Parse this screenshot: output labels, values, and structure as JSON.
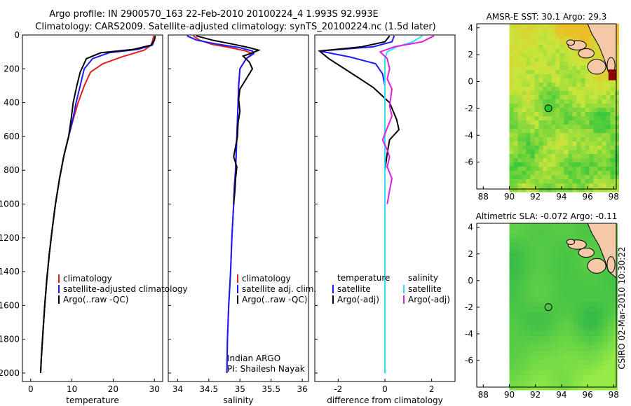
{
  "title_line1": "Argo profile: IN 2900570_163 22-Feb-2010 20100224_4 1.993S 92.993E",
  "title_line2": "Climatology: CARS2009. Satellite-adjusted climatology: synTS_20100224.nc (1.5d later)",
  "credit_text": "CSIRO 02-Mar-2010 10:30:22",
  "colors": {
    "climatology": "#e02020",
    "satellite_adj": "#1a1aff",
    "argo": "#000000",
    "sal_satellite": "#33ddff",
    "sal_argo": "#e020e0",
    "sea_green": "#22c233",
    "land": "#f5c8a8"
  },
  "chart_data": [
    {
      "type": "line",
      "name": "temperature-profile",
      "xlabel": "temperature",
      "ylabel": "",
      "xlim": [
        -2,
        32
      ],
      "ylim": [
        2050,
        0
      ],
      "xticks": [
        "0",
        "10",
        "20",
        "30"
      ],
      "xtick_values": [
        0,
        10,
        20,
        30
      ],
      "yticks": [
        "0",
        "200",
        "400",
        "600",
        "800",
        "1000",
        "1200",
        "1400",
        "1600",
        "1800",
        "2000"
      ],
      "ytick_values": [
        0,
        200,
        400,
        600,
        800,
        1000,
        1200,
        1400,
        1600,
        1800,
        2000
      ],
      "legend": [
        "climatology",
        "satellite-adjusted climatology",
        "Argo(..raw -QC)"
      ],
      "series": [
        {
          "name": "climatology",
          "color": "#e02020",
          "points": [
            [
              29.8,
              5
            ],
            [
              29.6,
              30
            ],
            [
              29.2,
              60
            ],
            [
              27.5,
              90
            ],
            [
              22,
              130
            ],
            [
              17.5,
              170
            ],
            [
              14.5,
              220
            ],
            [
              13,
              300
            ],
            [
              11.5,
              400
            ],
            [
              10.3,
              500
            ],
            [
              9.2,
              600
            ],
            [
              8,
              720
            ],
            [
              7,
              850
            ],
            [
              6,
              1000
            ],
            [
              5.2,
              1150
            ],
            [
              4.5,
              1300
            ],
            [
              3.9,
              1450
            ],
            [
              3.4,
              1600
            ],
            [
              3,
              1750
            ],
            [
              2.6,
              1900
            ],
            [
              2.4,
              2000
            ]
          ]
        },
        {
          "name": "satellite-adjusted climatology",
          "color": "#1a1aff",
          "points": [
            [
              30.2,
              5
            ],
            [
              30,
              30
            ],
            [
              29.5,
              60
            ],
            [
              26,
              85
            ],
            [
              19,
              105
            ],
            [
              15,
              140
            ],
            [
              13,
              200
            ],
            [
              12,
              300
            ],
            [
              11,
              400
            ],
            [
              10.2,
              500
            ],
            [
              9.2,
              600
            ],
            [
              8,
              720
            ],
            [
              7,
              850
            ],
            [
              6,
              1000
            ],
            [
              5.2,
              1150
            ],
            [
              4.5,
              1300
            ],
            [
              3.9,
              1450
            ],
            [
              3.4,
              1600
            ],
            [
              3,
              1750
            ],
            [
              2.6,
              1900
            ],
            [
              2.4,
              2000
            ]
          ]
        },
        {
          "name": "Argo(..raw -QC)",
          "color": "#000000",
          "points": [
            [
              30.2,
              5
            ],
            [
              30,
              30
            ],
            [
              29.2,
              60
            ],
            [
              25,
              85
            ],
            [
              17,
              105
            ],
            [
              13.5,
              140
            ],
            [
              12,
              220
            ],
            [
              11.2,
              300
            ],
            [
              10.3,
              400
            ],
            [
              9.8,
              500
            ],
            [
              9.2,
              600
            ],
            [
              8,
              720
            ],
            [
              7,
              850
            ],
            [
              6,
              1000
            ],
            [
              5.2,
              1150
            ],
            [
              4.5,
              1300
            ],
            [
              3.9,
              1450
            ],
            [
              3.4,
              1600
            ],
            [
              3,
              1750
            ],
            [
              2.6,
              1900
            ],
            [
              2.4,
              2000
            ]
          ]
        }
      ]
    },
    {
      "type": "line",
      "name": "salinity-profile",
      "xlabel": "salinity",
      "xlim": [
        33.85,
        36.1
      ],
      "ylim": [
        2050,
        0
      ],
      "xticks": [
        "34",
        "34.5",
        "35",
        "35.5",
        "36"
      ],
      "xtick_values": [
        34,
        34.5,
        35,
        35.5,
        36
      ],
      "legend": [
        "climatology",
        "satellite adj. clim.",
        "Argo(..raw -QC)"
      ],
      "annotations": [
        "Indian ARGO",
        "PI: Shailesh Nayak"
      ],
      "series": [
        {
          "name": "climatology",
          "color": "#e02020",
          "points": [
            [
              34.25,
              5
            ],
            [
              34.35,
              30
            ],
            [
              34.55,
              55
            ],
            [
              34.85,
              75
            ],
            [
              35.1,
              95
            ],
            [
              35.2,
              110
            ],
            [
              35.1,
              140
            ],
            [
              35.0,
              200
            ],
            [
              34.98,
              300
            ],
            [
              34.97,
              400
            ],
            [
              34.96,
              500
            ],
            [
              34.95,
              600
            ],
            [
              34.94,
              700
            ],
            [
              34.93,
              800
            ],
            [
              34.91,
              900
            ],
            [
              34.9,
              1000
            ],
            [
              34.87,
              1200
            ],
            [
              34.85,
              1400
            ],
            [
              34.82,
              1600
            ],
            [
              34.8,
              1800
            ],
            [
              34.79,
              2000
            ]
          ]
        },
        {
          "name": "satellite adj. clim.",
          "color": "#1a1aff",
          "points": [
            [
              34.15,
              5
            ],
            [
              34.3,
              30
            ],
            [
              34.65,
              55
            ],
            [
              35.0,
              75
            ],
            [
              35.2,
              95
            ],
            [
              35.22,
              110
            ],
            [
              35.1,
              140
            ],
            [
              35.0,
              200
            ],
            [
              34.98,
              300
            ],
            [
              34.97,
              400
            ],
            [
              34.96,
              500
            ],
            [
              34.95,
              600
            ],
            [
              34.94,
              700
            ],
            [
              34.93,
              800
            ],
            [
              34.91,
              900
            ],
            [
              34.9,
              1000
            ],
            [
              34.87,
              1200
            ],
            [
              34.85,
              1400
            ],
            [
              34.82,
              1600
            ],
            [
              34.8,
              1800
            ],
            [
              34.79,
              2000
            ]
          ]
        },
        {
          "name": "Argo(..raw -QC)",
          "color": "#000000",
          "points": [
            [
              34.3,
              5
            ],
            [
              34.55,
              30
            ],
            [
              34.9,
              55
            ],
            [
              35.15,
              75
            ],
            [
              35.3,
              90
            ],
            [
              35.2,
              105
            ],
            [
              35.05,
              125
            ],
            [
              35.15,
              160
            ],
            [
              35.2,
              200
            ],
            [
              35.1,
              260
            ],
            [
              35.0,
              320
            ],
            [
              34.98,
              380
            ],
            [
              35.0,
              450
            ],
            [
              34.97,
              520
            ],
            [
              34.96,
              600
            ],
            [
              34.92,
              680
            ],
            [
              34.9,
              720
            ],
            [
              34.95,
              780
            ],
            [
              34.93,
              850
            ],
            [
              34.92,
              920
            ],
            [
              34.9,
              1000
            ]
          ]
        }
      ]
    },
    {
      "type": "line",
      "name": "difference-profile",
      "xlabel": "difference from climatology",
      "xlim": [
        -3.0,
        3.0
      ],
      "ylim": [
        2050,
        0
      ],
      "xticks": [
        "-2",
        "0",
        "2"
      ],
      "xtick_values": [
        -2,
        0,
        2
      ],
      "legend": [
        "temperature",
        "satellite",
        "Argo(-adj)",
        "salinity",
        "satellite",
        "Argo(-adj)"
      ],
      "series": [
        {
          "name": "temperature satellite",
          "color": "#1a1aff",
          "points": [
            [
              0.4,
              5
            ],
            [
              0.3,
              40
            ],
            [
              -0.5,
              70
            ],
            [
              -2.8,
              95
            ],
            [
              -1.5,
              130
            ],
            [
              -0.4,
              170
            ],
            [
              -0.1,
              230
            ],
            [
              0,
              300
            ],
            [
              0,
              1000
            ],
            [
              0,
              1500
            ],
            [
              0,
              2000
            ]
          ]
        },
        {
          "name": "temperature Argo(-adj)",
          "color": "#000000",
          "points": [
            [
              0.2,
              5
            ],
            [
              0,
              40
            ],
            [
              -1,
              70
            ],
            [
              -2.8,
              95
            ],
            [
              -2.4,
              140
            ],
            [
              -1.5,
              220
            ],
            [
              -0.5,
              310
            ],
            [
              0.2,
              400
            ],
            [
              0.5,
              500
            ],
            [
              0.6,
              560
            ],
            [
              0.2,
              620
            ],
            [
              0.1,
              700
            ],
            [
              0,
              800
            ],
            [
              0,
              1000
            ]
          ]
        },
        {
          "name": "salinity satellite",
          "color": "#33ddff",
          "points": [
            [
              1.6,
              5
            ],
            [
              1.2,
              40
            ],
            [
              0.5,
              70
            ],
            [
              0.1,
              100
            ],
            [
              0,
              140
            ],
            [
              0,
              300
            ],
            [
              0,
              1000
            ],
            [
              0,
              1500
            ],
            [
              0,
              2000
            ]
          ]
        },
        {
          "name": "salinity Argo(-adj)",
          "color": "#e020e0",
          "points": [
            [
              2.1,
              5
            ],
            [
              1.6,
              40
            ],
            [
              0.4,
              70
            ],
            [
              -0.2,
              100
            ],
            [
              0.1,
              140
            ],
            [
              0.2,
              200
            ],
            [
              0.1,
              260
            ],
            [
              0.3,
              320
            ],
            [
              0.2,
              420
            ],
            [
              0.3,
              480
            ],
            [
              0.1,
              550
            ],
            [
              -0.1,
              620
            ],
            [
              0.1,
              680
            ],
            [
              0.2,
              720
            ],
            [
              0.1,
              780
            ],
            [
              0.3,
              850
            ],
            [
              0.2,
              920
            ],
            [
              0.1,
              1000
            ]
          ]
        }
      ]
    },
    {
      "type": "heatmap",
      "name": "sst-map",
      "title": "AMSR-E SST: 30.1  Argo: 29.3",
      "xlim": [
        87.5,
        98.2
      ],
      "ylim": [
        -8.0,
        4.3
      ],
      "xticks": [
        "88",
        "90",
        "92",
        "94",
        "96",
        "98"
      ],
      "xtick_values": [
        88,
        90,
        92,
        94,
        96,
        98
      ],
      "yticks": [
        "4",
        "2",
        "0",
        "-2",
        "-4",
        "-6"
      ],
      "ytick_values": [
        4,
        2,
        0,
        -2,
        -4,
        -6
      ],
      "data_extent": {
        "lon": [
          90,
          98.2
        ],
        "lat": [
          -8.0,
          4.3
        ]
      },
      "profile_location": {
        "lon": 92.993,
        "lat": -1.993
      },
      "marker_color": "#22cc22"
    },
    {
      "type": "heatmap",
      "name": "sla-map",
      "title": "Altimetric SLA: -0.072  Argo: -0.11",
      "xlim": [
        87.5,
        98.2
      ],
      "ylim": [
        -8.0,
        4.3
      ],
      "xticks": [
        "88",
        "90",
        "92",
        "94",
        "96",
        "98"
      ],
      "xtick_values": [
        88,
        90,
        92,
        94,
        96,
        98
      ],
      "yticks": [
        "4",
        "2",
        "0",
        "-2",
        "-4",
        "-6"
      ],
      "ytick_values": [
        4,
        2,
        0,
        -2,
        -4,
        -6
      ],
      "data_extent": {
        "lon": [
          90,
          98.2
        ],
        "lat": [
          -8.0,
          4.3
        ]
      },
      "profile_location": {
        "lon": 92.993,
        "lat": -1.993
      },
      "marker_color": "#22c233"
    }
  ]
}
